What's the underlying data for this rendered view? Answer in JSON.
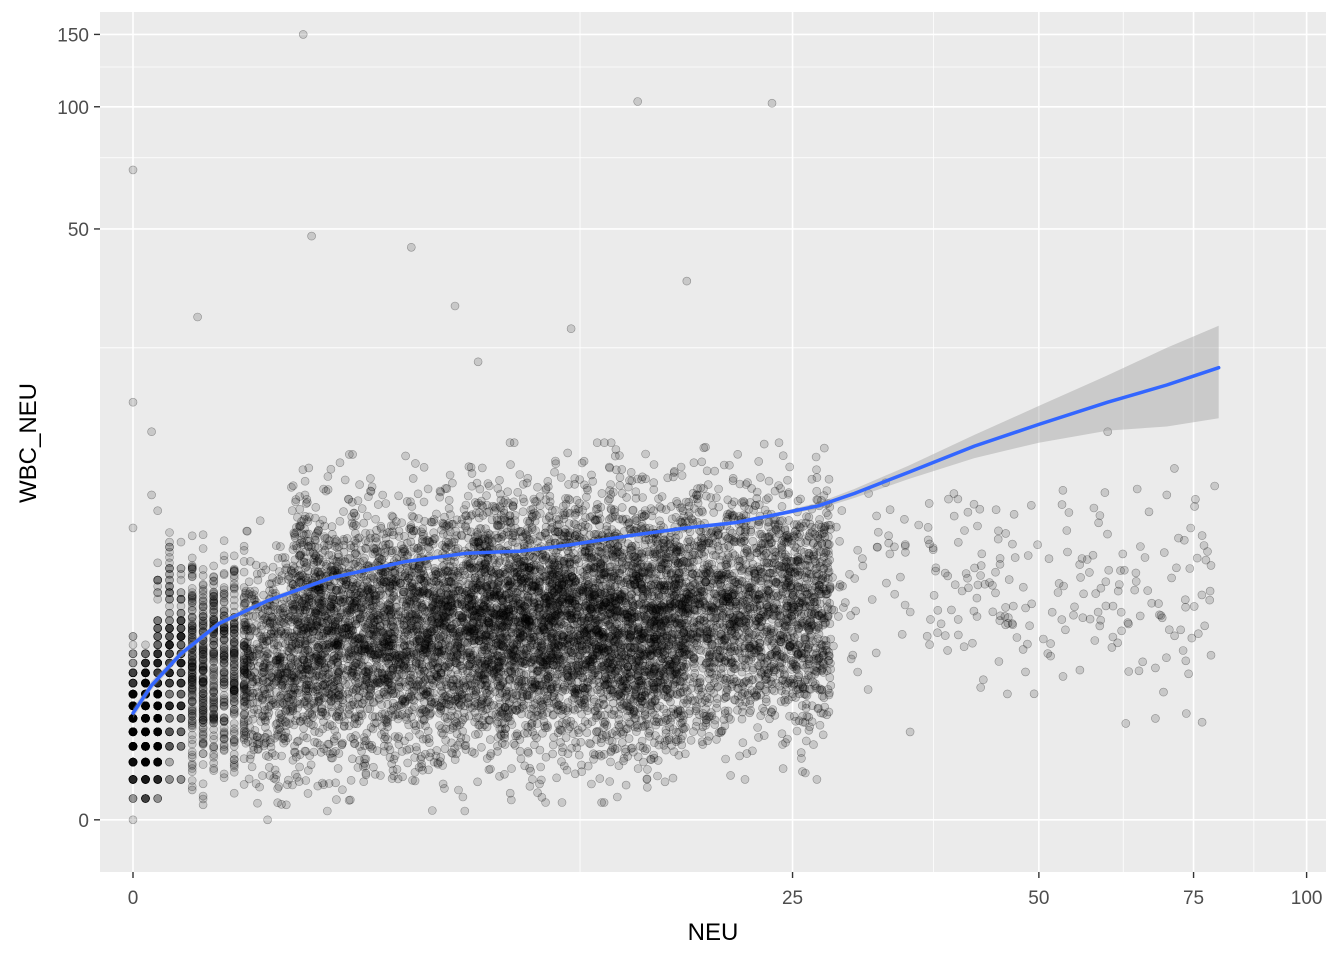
{
  "chart_data": {
    "type": "scatter",
    "title": "",
    "xlabel": "NEU",
    "ylabel": "WBC_NEU",
    "x_scale": "sqrt",
    "y_scale": "sqrt",
    "xlim": [
      -0.5,
      105
    ],
    "ylim": [
      -0.5,
      170
    ],
    "x_ticks": [
      0,
      25,
      50,
      75,
      100
    ],
    "x_tick_labels": [
      "0",
      "25",
      "50",
      "75",
      "100"
    ],
    "y_ticks": [
      0,
      50,
      100,
      150
    ],
    "y_tick_labels": [
      "0",
      "50",
      "100",
      "150"
    ],
    "grid": true,
    "legend": "none",
    "colors": {
      "panel": "#ebebeb",
      "grid": "#ffffff",
      "points": "#000000",
      "smooth_line": "#3366ff",
      "confidence_band": "#999999"
    },
    "series": [
      {
        "kind": "points",
        "point_alpha": 0.15,
        "outliers": [
          [
            0,
            70
          ],
          [
            0,
            18
          ],
          [
            0,
            8
          ],
          [
            0.2,
            1.5
          ],
          [
            0.3,
            15
          ],
          [
            0.3,
            10
          ],
          [
            1.1,
            30
          ],
          [
            3.3,
            150
          ],
          [
            3.5,
            48
          ],
          [
            6.2,
            45
          ],
          [
            7.6,
            32
          ],
          [
            8.4,
            23
          ],
          [
            12.1,
            28
          ],
          [
            15.3,
            103
          ],
          [
            18,
            37
          ],
          [
            23.5,
            102
          ],
          [
            24,
            14
          ],
          [
            32,
            7
          ],
          [
            45,
            4
          ],
          [
            60,
            15
          ],
          [
            70,
            10
          ]
        ],
        "cloud": [
          {
            "x_range": [
              0,
              0.4
            ],
            "y_range": [
              0,
              4
            ],
            "count": 700
          },
          {
            "x_range": [
              0.4,
              3
            ],
            "y_range": [
              0,
              9
            ],
            "count": 1400
          },
          {
            "x_range": [
              3,
              8
            ],
            "y_range": [
              0.1,
              13
            ],
            "count": 2800
          },
          {
            "x_range": [
              8,
              18
            ],
            "y_range": [
              0.2,
              14
            ],
            "count": 4200
          },
          {
            "x_range": [
              18,
              28
            ],
            "y_range": [
              0.5,
              14
            ],
            "count": 1800
          },
          {
            "x_range": [
              28,
              80
            ],
            "y_range": [
              1,
              14
            ],
            "count": 250
          }
        ]
      },
      {
        "kind": "smooth",
        "x": [
          0,
          0.3,
          0.8,
          1.5,
          2.5,
          4,
          6,
          8,
          10,
          12,
          15,
          18,
          21,
          24,
          27,
          30,
          35,
          42,
          50,
          60,
          70,
          80
        ],
        "y": [
          1.6,
          2.2,
          3,
          3.9,
          4.7,
          5.6,
          6.3,
          6.7,
          6.8,
          7.1,
          7.6,
          8,
          8.3,
          8.8,
          9.3,
          10.1,
          11.6,
          13.7,
          15.7,
          18,
          20,
          22.2
        ],
        "band_lower": [
          1.5,
          2.1,
          2.9,
          3.8,
          4.6,
          5.5,
          6.2,
          6.6,
          6.75,
          7.05,
          7.55,
          7.95,
          8.25,
          8.7,
          9.1,
          9.8,
          11.1,
          12.7,
          14,
          15.1,
          15.5,
          16.3
        ],
        "band_upper": [
          1.7,
          2.3,
          3.1,
          4,
          4.8,
          5.7,
          6.4,
          6.8,
          6.85,
          7.15,
          7.65,
          8.05,
          8.35,
          8.9,
          9.5,
          10.4,
          12.1,
          14.7,
          17.6,
          21.2,
          25,
          28.5
        ]
      }
    ]
  }
}
